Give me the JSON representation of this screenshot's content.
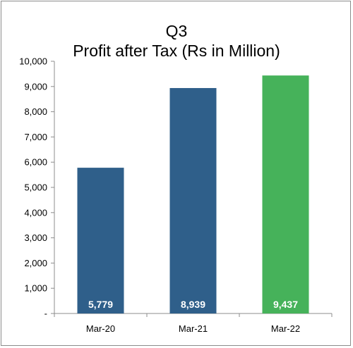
{
  "chart_data": {
    "type": "bar",
    "title": "Q3",
    "subtitle": "Profit after Tax (Rs in Million)",
    "categories": [
      "Mar-20",
      "Mar-21",
      "Mar-22"
    ],
    "values": [
      5779,
      8939,
      9437
    ],
    "data_labels": [
      "5,779",
      "8,939",
      "9,437"
    ],
    "bar_colors": [
      "#2f5f8a",
      "#2f5f8a",
      "#46b25a"
    ],
    "ylim": [
      0,
      10000
    ],
    "y_ticks": [
      0,
      1000,
      2000,
      3000,
      4000,
      5000,
      6000,
      7000,
      8000,
      9000,
      10000
    ],
    "y_tick_labels": [
      "-",
      "1,000",
      "2,000",
      "3,000",
      "4,000",
      "5,000",
      "6,000",
      "7,000",
      "8,000",
      "9,000",
      "10,000"
    ],
    "grid": false,
    "legend": "none",
    "xlabel": "",
    "ylabel": ""
  }
}
